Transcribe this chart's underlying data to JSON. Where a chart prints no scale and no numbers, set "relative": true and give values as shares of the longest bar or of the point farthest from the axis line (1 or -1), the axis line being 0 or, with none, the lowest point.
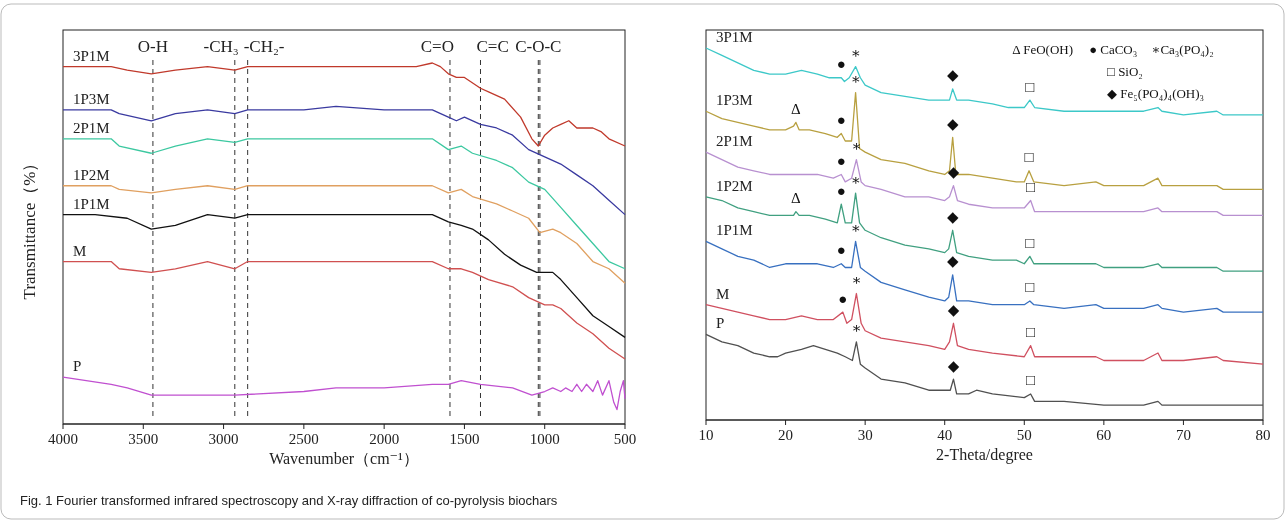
{
  "chart_data": [
    {
      "type": "line",
      "relative": true,
      "xlabel": "Wavenumber（cm⁻¹）",
      "ylabel": "Transmittance（%）",
      "xlim": [
        4000,
        500
      ],
      "xticks": [
        4000,
        3500,
        3000,
        2500,
        2000,
        1500,
        1000,
        500
      ],
      "series": [
        {
          "name": "3P1M",
          "color": "#c0392b",
          "x": [
            4000,
            3800,
            3700,
            3600,
            3450,
            3300,
            3100,
            2930,
            2850,
            2500,
            2000,
            1800,
            1700,
            1650,
            1600,
            1550,
            1500,
            1400,
            1350,
            1250,
            1150,
            1080,
            1040,
            1000,
            950,
            900,
            850,
            800,
            750,
            700,
            650,
            600,
            500
          ],
          "values": [
            0.99,
            0.99,
            0.99,
            0.98,
            0.97,
            0.98,
            0.99,
            0.98,
            0.99,
            0.99,
            0.99,
            0.99,
            1.0,
            0.99,
            0.97,
            0.96,
            0.96,
            0.93,
            0.92,
            0.9,
            0.85,
            0.79,
            0.77,
            0.8,
            0.82,
            0.83,
            0.84,
            0.82,
            0.82,
            0.82,
            0.81,
            0.79,
            0.77
          ]
        },
        {
          "name": "1P3M",
          "color": "#3a3aa0",
          "x": [
            4000,
            3700,
            3650,
            3450,
            3300,
            3100,
            2930,
            2850,
            2500,
            2300,
            2000,
            1700,
            1600,
            1550,
            1500,
            1400,
            1300,
            1200,
            1100,
            1000,
            900,
            800,
            700,
            600,
            500
          ],
          "values": [
            0.87,
            0.87,
            0.86,
            0.84,
            0.86,
            0.87,
            0.86,
            0.87,
            0.87,
            0.88,
            0.87,
            0.87,
            0.85,
            0.84,
            0.85,
            0.83,
            0.82,
            0.8,
            0.76,
            0.74,
            0.72,
            0.69,
            0.66,
            0.62,
            0.58
          ]
        },
        {
          "name": "2P1M",
          "color": "#3cc8a0",
          "x": [
            4000,
            3700,
            3650,
            3450,
            3300,
            3100,
            2930,
            2850,
            2300,
            2000,
            1700,
            1600,
            1520,
            1450,
            1300,
            1200,
            1100,
            1000,
            900,
            800,
            700,
            600,
            500
          ],
          "values": [
            0.79,
            0.79,
            0.77,
            0.75,
            0.77,
            0.79,
            0.78,
            0.79,
            0.79,
            0.79,
            0.79,
            0.76,
            0.77,
            0.75,
            0.73,
            0.71,
            0.67,
            0.65,
            0.6,
            0.55,
            0.5,
            0.45,
            0.43
          ]
        },
        {
          "name": "1P2M",
          "color": "#e0a060",
          "x": [
            4000,
            3700,
            3650,
            3450,
            3300,
            3100,
            2930,
            2850,
            2300,
            2000,
            1700,
            1600,
            1520,
            1450,
            1300,
            1200,
            1100,
            1030,
            950,
            900,
            800,
            700,
            600,
            500
          ],
          "values": [
            0.66,
            0.66,
            0.65,
            0.64,
            0.65,
            0.66,
            0.65,
            0.66,
            0.66,
            0.66,
            0.66,
            0.64,
            0.65,
            0.63,
            0.61,
            0.59,
            0.57,
            0.53,
            0.54,
            0.53,
            0.5,
            0.45,
            0.43,
            0.39
          ]
        },
        {
          "name": "1P1M",
          "color": "#111111",
          "x": [
            4000,
            3800,
            3600,
            3450,
            3300,
            3100,
            2930,
            2850,
            2300,
            2000,
            1700,
            1600,
            1520,
            1450,
            1350,
            1250,
            1150,
            1050,
            950,
            900,
            800,
            700,
            600,
            500
          ],
          "values": [
            0.58,
            0.58,
            0.57,
            0.54,
            0.55,
            0.58,
            0.57,
            0.58,
            0.58,
            0.58,
            0.58,
            0.56,
            0.55,
            0.54,
            0.51,
            0.47,
            0.44,
            0.42,
            0.42,
            0.4,
            0.35,
            0.3,
            0.27,
            0.24
          ]
        },
        {
          "name": "M",
          "color": "#d05050",
          "x": [
            4000,
            3700,
            3650,
            3450,
            3300,
            3100,
            2930,
            2850,
            2300,
            2000,
            1700,
            1600,
            1520,
            1450,
            1350,
            1200,
            1100,
            1000,
            950,
            900,
            800,
            700,
            600,
            500
          ],
          "values": [
            0.45,
            0.45,
            0.43,
            0.42,
            0.43,
            0.45,
            0.43,
            0.45,
            0.45,
            0.45,
            0.45,
            0.43,
            0.43,
            0.42,
            0.4,
            0.38,
            0.35,
            0.33,
            0.33,
            0.32,
            0.28,
            0.25,
            0.21,
            0.18
          ]
        },
        {
          "name": "P",
          "color": "#c050d0",
          "x": [
            4000,
            3700,
            3600,
            3450,
            3200,
            2930,
            2500,
            2300,
            2000,
            1700,
            1600,
            1520,
            1400,
            1200,
            1080,
            1000,
            950,
            900,
            870,
            830,
            800,
            770,
            740,
            700,
            670,
            640,
            600,
            570,
            550,
            530,
            510,
            500
          ],
          "values": [
            0.13,
            0.11,
            0.1,
            0.08,
            0.08,
            0.08,
            0.09,
            0.1,
            0.1,
            0.11,
            0.11,
            0.12,
            0.11,
            0.1,
            0.08,
            0.09,
            0.1,
            0.09,
            0.1,
            0.09,
            0.11,
            0.09,
            0.11,
            0.09,
            0.12,
            0.08,
            0.12,
            0.06,
            0.04,
            0.09,
            0.12,
            0.07
          ]
        }
      ],
      "ref_lines": [
        {
          "axis": "x",
          "value": 3440,
          "label": "O-H",
          "color": "#333333",
          "line_style": "dashed"
        },
        {
          "axis": "x",
          "value": 2930,
          "label": "-CH₃",
          "color": "#333333",
          "line_style": "dashed"
        },
        {
          "axis": "x",
          "value": 2850,
          "label": "-CH₂-",
          "color": "#333333",
          "line_style": "dashed"
        },
        {
          "axis": "x",
          "value": 1590,
          "label": "C=O",
          "color": "#333333",
          "line_style": "dashed"
        },
        {
          "axis": "x",
          "value": 1400,
          "label": "C=C",
          "color": "#333333",
          "line_style": "dashed"
        },
        {
          "axis": "x",
          "value": 1040,
          "label": "C-O-C",
          "color": "#333333",
          "line_style": "dashed"
        },
        {
          "axis": "x",
          "value": 1030,
          "color": "#333333",
          "line_style": "dashed"
        }
      ],
      "annotations": [
        "Fig. 1  Fourier transformed infrared spectroscopy and X-ray diffraction of co-pyrolysis biochars"
      ]
    },
    {
      "type": "line",
      "relative": true,
      "xlabel": "2-Theta/degree",
      "xlim": [
        10,
        80
      ],
      "xticks": [
        10,
        20,
        30,
        40,
        50,
        60,
        70,
        80
      ],
      "series": [
        {
          "name": "3P1M",
          "color": "#3cc8c8",
          "x": [
            10,
            12,
            14,
            16,
            18,
            20,
            22,
            24,
            25.5,
            26.5,
            27,
            27.4,
            28,
            28.8,
            29.4,
            30,
            32,
            35,
            38,
            40,
            40.6,
            41,
            41.5,
            43,
            46,
            48,
            50,
            50.7,
            51.3,
            55,
            58,
            59,
            60,
            65,
            66.8,
            67.3,
            70,
            74.2,
            75,
            80
          ],
          "values": [
            1.0,
            0.98,
            0.96,
            0.94,
            0.93,
            0.93,
            0.94,
            0.93,
            0.92,
            0.92,
            0.92,
            0.91,
            0.92,
            0.95,
            0.92,
            0.9,
            0.88,
            0.87,
            0.86,
            0.86,
            0.86,
            0.89,
            0.86,
            0.86,
            0.85,
            0.84,
            0.84,
            0.86,
            0.84,
            0.83,
            0.83,
            0.83,
            0.83,
            0.83,
            0.84,
            0.83,
            0.82,
            0.83,
            0.82,
            0.82
          ]
        },
        {
          "name": "1P3M",
          "color": "#b8a040",
          "x": [
            10,
            12,
            14,
            16,
            18,
            20,
            21,
            21.3,
            21.7,
            23,
            25,
            26.5,
            27,
            27.5,
            28.3,
            28.8,
            29.3,
            30,
            32,
            35,
            38,
            40,
            40.6,
            41,
            41.4,
            43,
            46,
            49,
            50,
            50.6,
            51.2,
            55,
            59,
            60,
            65,
            66.8,
            67.3,
            70,
            74.2,
            75,
            80
          ],
          "values": [
            0.83,
            0.81,
            0.8,
            0.79,
            0.78,
            0.78,
            0.79,
            0.8,
            0.78,
            0.78,
            0.77,
            0.76,
            0.77,
            0.75,
            0.75,
            0.88,
            0.73,
            0.72,
            0.7,
            0.69,
            0.67,
            0.66,
            0.67,
            0.76,
            0.66,
            0.66,
            0.65,
            0.64,
            0.64,
            0.67,
            0.64,
            0.63,
            0.64,
            0.63,
            0.63,
            0.65,
            0.63,
            0.63,
            0.63,
            0.62,
            0.62
          ]
        },
        {
          "name": "2P1M",
          "color": "#b890d0",
          "x": [
            10,
            12,
            14,
            16,
            18,
            20,
            22,
            24,
            26,
            27,
            27.5,
            28.3,
            28.9,
            29.5,
            30,
            32,
            35,
            38,
            40,
            40.6,
            41.1,
            41.6,
            43,
            46,
            50,
            50.8,
            51.3,
            55,
            59,
            60,
            65,
            66.8,
            67.3,
            70,
            74.2,
            75,
            80
          ],
          "values": [
            0.72,
            0.7,
            0.68,
            0.67,
            0.66,
            0.66,
            0.66,
            0.66,
            0.65,
            0.66,
            0.64,
            0.65,
            0.7,
            0.64,
            0.63,
            0.62,
            0.6,
            0.6,
            0.59,
            0.6,
            0.63,
            0.59,
            0.58,
            0.57,
            0.57,
            0.59,
            0.56,
            0.56,
            0.56,
            0.56,
            0.56,
            0.57,
            0.56,
            0.56,
            0.56,
            0.55,
            0.55
          ]
        },
        {
          "name": "1P2M",
          "color": "#40a080",
          "x": [
            10,
            12,
            14,
            16,
            18,
            20,
            21,
            21.3,
            21.7,
            23,
            25,
            26.5,
            27,
            27.5,
            28.3,
            28.8,
            29.3,
            30,
            32,
            35,
            38,
            40,
            40.5,
            41,
            41.5,
            43,
            46,
            49,
            50,
            50.7,
            51.2,
            55,
            59,
            60,
            65,
            66.8,
            67.3,
            70,
            74.2,
            75,
            80
          ],
          "values": [
            0.6,
            0.59,
            0.57,
            0.56,
            0.55,
            0.55,
            0.55,
            0.56,
            0.55,
            0.55,
            0.54,
            0.53,
            0.58,
            0.53,
            0.53,
            0.61,
            0.53,
            0.51,
            0.49,
            0.47,
            0.46,
            0.45,
            0.46,
            0.51,
            0.45,
            0.44,
            0.43,
            0.43,
            0.42,
            0.44,
            0.42,
            0.42,
            0.42,
            0.41,
            0.41,
            0.42,
            0.41,
            0.41,
            0.41,
            0.4,
            0.4
          ]
        },
        {
          "name": "1P1M",
          "color": "#3870c0",
          "x": [
            10,
            12,
            14,
            16,
            18,
            20,
            22,
            24,
            26,
            27,
            27.5,
            28.3,
            28.8,
            29.4,
            30,
            32,
            35,
            38,
            40,
            40.5,
            41,
            41.5,
            43,
            46,
            50,
            50.7,
            51.2,
            55,
            59,
            60,
            65,
            66.8,
            67.3,
            70,
            74.2,
            75,
            80
          ],
          "values": [
            0.48,
            0.46,
            0.44,
            0.43,
            0.41,
            0.42,
            0.42,
            0.42,
            0.41,
            0.42,
            0.41,
            0.41,
            0.48,
            0.41,
            0.4,
            0.37,
            0.35,
            0.33,
            0.32,
            0.33,
            0.39,
            0.32,
            0.32,
            0.31,
            0.31,
            0.32,
            0.31,
            0.3,
            0.31,
            0.3,
            0.3,
            0.31,
            0.3,
            0.29,
            0.3,
            0.29,
            0.29
          ]
        },
        {
          "name": "M",
          "color": "#d05060",
          "x": [
            10,
            12,
            14,
            16,
            18,
            20,
            22,
            24,
            26,
            27.2,
            27.7,
            28.3,
            28.9,
            29.5,
            30,
            32,
            35,
            38,
            40,
            40.6,
            41.1,
            41.6,
            43,
            46,
            50,
            50.8,
            51.3,
            55,
            59,
            60,
            65,
            66.8,
            67.3,
            70,
            74.2,
            75,
            80
          ],
          "values": [
            0.31,
            0.3,
            0.29,
            0.28,
            0.27,
            0.27,
            0.28,
            0.27,
            0.27,
            0.29,
            0.26,
            0.27,
            0.34,
            0.26,
            0.24,
            0.22,
            0.21,
            0.2,
            0.19,
            0.21,
            0.26,
            0.2,
            0.19,
            0.18,
            0.17,
            0.2,
            0.17,
            0.17,
            0.17,
            0.16,
            0.16,
            0.18,
            0.16,
            0.16,
            0.17,
            0.16,
            0.15
          ]
        },
        {
          "name": "P",
          "color": "#505050",
          "x": [
            10,
            12,
            14,
            16,
            18,
            19,
            20,
            22,
            23.5,
            25,
            26.5,
            27.5,
            28.4,
            28.9,
            29.4,
            30,
            32,
            35,
            38,
            40,
            40.7,
            41.1,
            41.5,
            43,
            44,
            46,
            50,
            50.8,
            51.3,
            55,
            60,
            65,
            66.8,
            67.3,
            70,
            74.2,
            80
          ],
          "values": [
            0.23,
            0.21,
            0.2,
            0.18,
            0.17,
            0.17,
            0.18,
            0.19,
            0.2,
            0.19,
            0.18,
            0.17,
            0.16,
            0.21,
            0.15,
            0.14,
            0.11,
            0.1,
            0.08,
            0.08,
            0.08,
            0.11,
            0.07,
            0.07,
            0.08,
            0.07,
            0.06,
            0.07,
            0.05,
            0.05,
            0.04,
            0.04,
            0.05,
            0.04,
            0.04,
            0.04,
            0.04
          ]
        }
      ],
      "annotations": [
        "Δ FeO(OH)",
        "● CaCO₃",
        "∗Ca₃(PO₄)₂",
        "□ SiO₂",
        "◆ Fe₅(PO₄)₄(OH)₃",
        {
          "text": "●",
          "x": 27,
          "y": 0.92
        },
        {
          "text": "∗",
          "x": 28.8,
          "y": 0.95
        },
        {
          "text": "◆",
          "x": 41,
          "y": 0.89
        },
        {
          "text": "□",
          "x": 50.7,
          "y": 0.86
        },
        {
          "text": "Δ",
          "x": 21.3,
          "y": 0.8
        },
        {
          "text": "●",
          "x": 27,
          "y": 0.77
        },
        {
          "text": "∗",
          "x": 28.8,
          "y": 0.88
        },
        {
          "text": "◆",
          "x": 41,
          "y": 0.76
        },
        {
          "text": "□",
          "x": 50.6,
          "y": 0.67
        },
        {
          "text": "●",
          "x": 27,
          "y": 0.66
        },
        {
          "text": "∗",
          "x": 28.9,
          "y": 0.7
        },
        {
          "text": "◆",
          "x": 41.1,
          "y": 0.63
        },
        {
          "text": "□",
          "x": 50.8,
          "y": 0.59
        },
        {
          "text": "Δ",
          "x": 21.3,
          "y": 0.56
        },
        {
          "text": "●",
          "x": 27,
          "y": 0.58
        },
        {
          "text": "∗",
          "x": 28.8,
          "y": 0.61
        },
        {
          "text": "◆",
          "x": 41,
          "y": 0.51
        },
        {
          "text": "□",
          "x": 50.7,
          "y": 0.44
        },
        {
          "text": "●",
          "x": 27,
          "y": 0.42
        },
        {
          "text": "∗",
          "x": 28.8,
          "y": 0.48
        },
        {
          "text": "◆",
          "x": 41,
          "y": 0.39
        },
        {
          "text": "□",
          "x": 50.7,
          "y": 0.32
        },
        {
          "text": "●",
          "x": 27.2,
          "y": 0.29
        },
        {
          "text": "∗",
          "x": 28.9,
          "y": 0.34
        },
        {
          "text": "◆",
          "x": 41.1,
          "y": 0.26
        },
        {
          "text": "□",
          "x": 50.8,
          "y": 0.2
        },
        {
          "text": "∗",
          "x": 28.9,
          "y": 0.21
        },
        {
          "text": "◆",
          "x": 41.1,
          "y": 0.11
        },
        {
          "text": "□",
          "x": 50.8,
          "y": 0.07
        }
      ]
    }
  ]
}
